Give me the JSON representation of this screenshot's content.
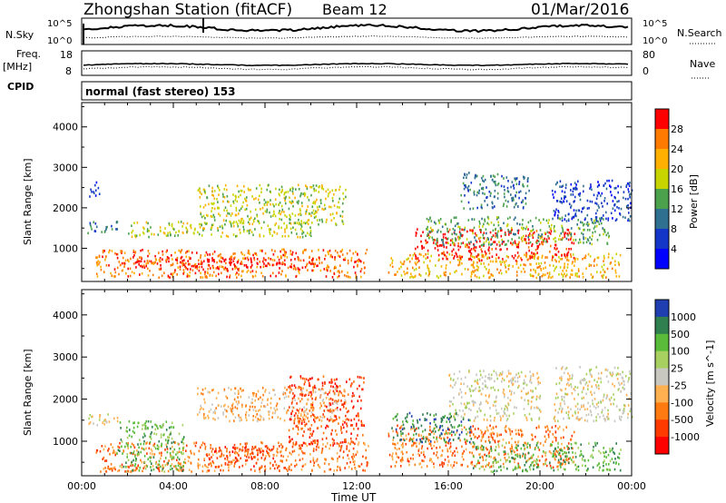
{
  "header": {
    "station": "Zhongshan Station (fitACF)",
    "beam": "Beam 12",
    "date": "01/Mar/2016"
  },
  "noise_panel": {
    "left_label": "N.Sky",
    "right_label": "N.Search",
    "left_ticks": [
      "10^5",
      "10^0"
    ],
    "right_ticks": [
      "10^5",
      "10^0"
    ]
  },
  "freq_panel": {
    "left_label_1": "Freq.",
    "left_label_2": "[MHz]",
    "left_ticks": [
      "18",
      "8"
    ],
    "right_label": "Nave",
    "right_ticks": [
      "80",
      "0"
    ]
  },
  "cpid": {
    "label": "CPID",
    "value": "normal (fast stereo) 153"
  },
  "x_axis": {
    "label": "Time UT",
    "ticks": [
      "00:00",
      "04:00",
      "08:00",
      "12:00",
      "16:00",
      "20:00",
      "00:00"
    ]
  },
  "chart_data": [
    {
      "type": "heatmap",
      "name": "power-panel",
      "ylabel": "Slant Range [km]",
      "yticks": [
        "4000",
        "3000",
        "2000",
        "1000"
      ],
      "ylim": [
        180,
        4600
      ],
      "xlim": [
        0,
        24
      ],
      "colorbar_label": "Power [dB]",
      "colorbar_ticks": [
        "28",
        "24",
        "20",
        "16",
        "12",
        "8",
        "4"
      ],
      "colorbar_colors": [
        "#ff0000",
        "#ff7a00",
        "#ffb000",
        "#c8d400",
        "#4ca24c",
        "#2f6f8f",
        "#1436c8",
        "#0000ff"
      ],
      "regions": [
        {
          "t0": 0.2,
          "t1": 1.6,
          "r0": 1400,
          "r1": 1700,
          "level": 5
        },
        {
          "t0": 0.3,
          "t1": 0.8,
          "r0": 2300,
          "r1": 2700,
          "level": 6
        },
        {
          "t0": 0.6,
          "t1": 12.5,
          "r0": 300,
          "r1": 1000,
          "level": 1
        },
        {
          "t0": 1.8,
          "t1": 10.5,
          "r0": 500,
          "r1": 800,
          "level": 0
        },
        {
          "t0": 2.0,
          "t1": 10.0,
          "r0": 1300,
          "r1": 1700,
          "level": 3
        },
        {
          "t0": 5.0,
          "t1": 11.5,
          "r0": 1600,
          "r1": 2600,
          "level": 3
        },
        {
          "t0": 13.3,
          "t1": 23.5,
          "r0": 300,
          "r1": 900,
          "level": 2
        },
        {
          "t0": 14.5,
          "t1": 21.5,
          "r0": 700,
          "r1": 1500,
          "level": 0
        },
        {
          "t0": 15.0,
          "t1": 23.0,
          "r0": 1100,
          "r1": 1800,
          "level": 4
        },
        {
          "t0": 16.5,
          "t1": 19.5,
          "r0": 2000,
          "r1": 2900,
          "level": 5
        },
        {
          "t0": 20.5,
          "t1": 24.0,
          "r0": 1700,
          "r1": 2700,
          "level": 6
        }
      ]
    },
    {
      "type": "heatmap",
      "name": "velocity-panel",
      "ylabel": "Slant Range [km]",
      "yticks": [
        "4000",
        "3000",
        "2000",
        "1000"
      ],
      "ylim": [
        180,
        4600
      ],
      "xlim": [
        0,
        24
      ],
      "colorbar_label": "Velocity [m s^-1]",
      "colorbar_ticks": [
        "1000",
        "500",
        "100",
        "25",
        "-25",
        "-100",
        "-500",
        "-1000"
      ],
      "colorbar_colors": [
        "#1f3fb0",
        "#2f7f4f",
        "#5abb3a",
        "#a8d060",
        "#c8c8c0",
        "#ffb050",
        "#ff7a10",
        "#ff3a00",
        "#ff0000"
      ],
      "regions": [
        {
          "t0": 0.2,
          "t1": 1.6,
          "r0": 1400,
          "r1": 1700,
          "level": 4
        },
        {
          "t0": 0.6,
          "t1": 12.5,
          "r0": 300,
          "r1": 1000,
          "level": 6
        },
        {
          "t0": 1.5,
          "t1": 4.5,
          "r0": 300,
          "r1": 1500,
          "level": 2
        },
        {
          "t0": 5.5,
          "t1": 8.5,
          "r0": 400,
          "r1": 900,
          "level": 7
        },
        {
          "t0": 9.0,
          "t1": 12.3,
          "r0": 900,
          "r1": 2600,
          "level": 7
        },
        {
          "t0": 5.0,
          "t1": 11.5,
          "r0": 1500,
          "r1": 2300,
          "level": 5
        },
        {
          "t0": 13.3,
          "t1": 21.5,
          "r0": 400,
          "r1": 1400,
          "level": 6
        },
        {
          "t0": 17.0,
          "t1": 23.5,
          "r0": 300,
          "r1": 1000,
          "level": 2
        },
        {
          "t0": 16.0,
          "t1": 20.0,
          "r0": 1500,
          "r1": 2700,
          "level": 4
        },
        {
          "t0": 20.5,
          "t1": 24.0,
          "r0": 1500,
          "r1": 2800,
          "level": 4
        },
        {
          "t0": 13.5,
          "t1": 17.0,
          "r0": 1000,
          "r1": 1700,
          "level": 1
        }
      ]
    }
  ]
}
